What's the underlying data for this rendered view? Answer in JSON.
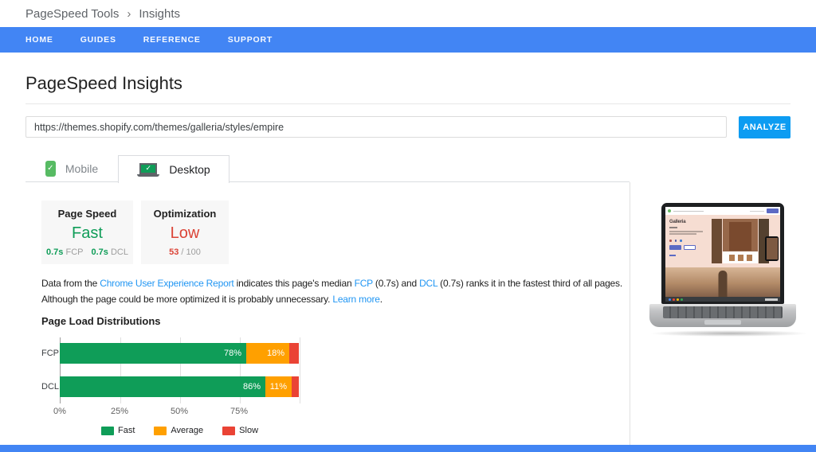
{
  "breadcrumb": {
    "root": "PageSpeed Tools",
    "separator": "›",
    "current": "Insights"
  },
  "nav": {
    "items": [
      {
        "label": "HOME"
      },
      {
        "label": "GUIDES"
      },
      {
        "label": "REFERENCE"
      },
      {
        "label": "SUPPORT"
      }
    ]
  },
  "header": {
    "title": "PageSpeed Insights"
  },
  "analyzer": {
    "url_value": "https://themes.shopify.com/themes/galleria/styles/empire",
    "analyze_label": "ANALYZE"
  },
  "tabs": {
    "mobile": {
      "label": "Mobile"
    },
    "desktop": {
      "label": "Desktop",
      "active": true
    }
  },
  "cards": {
    "page_speed": {
      "title": "Page Speed",
      "rating": "Fast",
      "metrics": [
        {
          "value": "0.7s",
          "label": "FCP"
        },
        {
          "value": "0.7s",
          "label": "DCL"
        }
      ]
    },
    "optimization": {
      "title": "Optimization",
      "rating": "Low",
      "score": "53",
      "score_suffix": "/ 100"
    }
  },
  "description": {
    "lines": [
      [
        {
          "t": "Data from the "
        },
        {
          "t": "Chrome User Experience Report",
          "link": true,
          "name": "chrome-ux-report-link"
        },
        {
          "t": " indicates this page's median "
        },
        {
          "t": "FCP",
          "link": true,
          "name": "fcp-link"
        },
        {
          "t": " (0.7s) and "
        },
        {
          "t": "DCL",
          "link": true,
          "name": "dcl-link"
        },
        {
          "t": " (0.7s) ranks it in the fastest third of all pages."
        }
      ],
      [
        {
          "t": "Although the page could be more optimized it is probably unnecessary. "
        },
        {
          "t": "Learn more",
          "link": true,
          "name": "learn-more-link"
        },
        {
          "t": "."
        }
      ]
    ]
  },
  "chart_data": {
    "type": "bar",
    "stacked": true,
    "orientation": "horizontal",
    "title": "Page Load Distributions",
    "categories": [
      "FCP",
      "DCL"
    ],
    "series": [
      {
        "name": "Fast",
        "color": "#0f9d58",
        "values": [
          78,
          86
        ]
      },
      {
        "name": "Average",
        "color": "#ffa000",
        "values": [
          18,
          11
        ]
      },
      {
        "name": "Slow",
        "color": "#ea4335",
        "values": [
          4,
          3
        ]
      }
    ],
    "bar_labels": [
      [
        "78%",
        "18%",
        ""
      ],
      [
        "86%",
        "11%",
        ""
      ]
    ],
    "x_ticks": [
      {
        "label": "0%",
        "value": 0
      },
      {
        "label": "25%",
        "value": 25
      },
      {
        "label": "50%",
        "value": 50
      },
      {
        "label": "75%",
        "value": 75
      }
    ],
    "xlim": [
      0,
      100
    ],
    "grid": true,
    "legend_position": "bottom",
    "legend": [
      "Fast",
      "Average",
      "Slow"
    ]
  },
  "preview": {
    "site_title": "Galleria"
  },
  "colors": {
    "nav_blue": "#4285f4",
    "analyze_blue": "#0d9cf2",
    "fast_green": "#0f9d58",
    "average_orange": "#ffa000",
    "slow_red": "#ea4335",
    "low_red": "#db4437",
    "link_blue": "#2196f3"
  }
}
